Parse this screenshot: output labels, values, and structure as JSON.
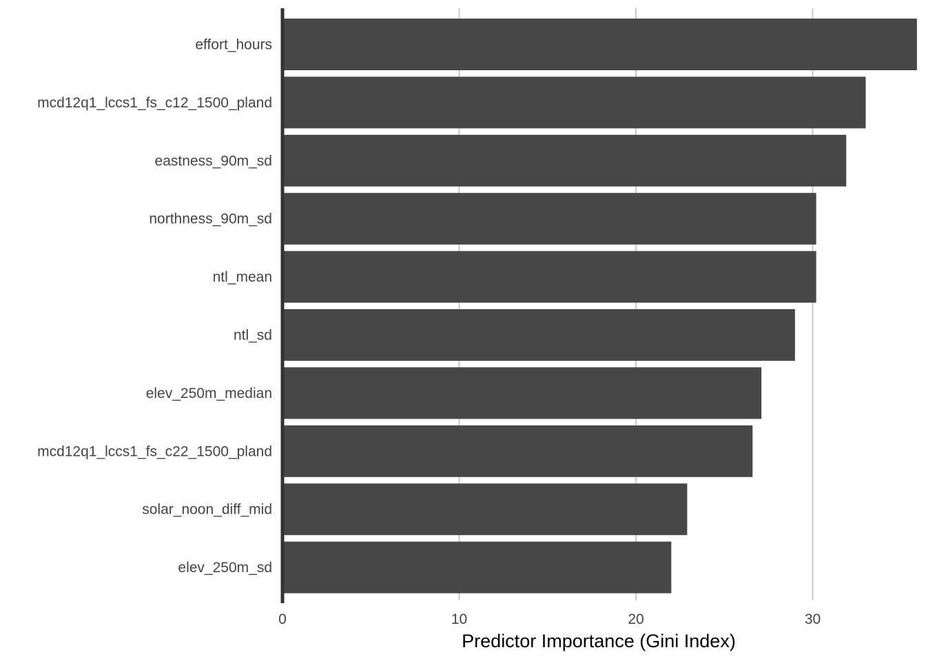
{
  "chart_data": {
    "type": "bar",
    "orientation": "horizontal",
    "categories": [
      "effort_hours",
      "mcd12q1_lccs1_fs_c12_1500_pland",
      "eastness_90m_sd",
      "northness_90m_sd",
      "ntl_mean",
      "ntl_sd",
      "elev_250m_median",
      "mcd12q1_lccs1_fs_c22_1500_pland",
      "solar_noon_diff_mid",
      "elev_250m_sd"
    ],
    "values": [
      35.9,
      33.0,
      31.9,
      30.2,
      30.2,
      29.0,
      27.1,
      26.6,
      22.9,
      22.0
    ],
    "title": "",
    "xlabel": "Predictor Importance (Gini Index)",
    "ylabel": "",
    "xlim": [
      0,
      36
    ],
    "x_ticks": [
      0,
      10,
      20,
      30
    ],
    "grid": "vertical-major",
    "legend": "none",
    "bar_color": "#474747",
    "grid_color": "#c8c8c8",
    "axis_color": "#333333"
  }
}
